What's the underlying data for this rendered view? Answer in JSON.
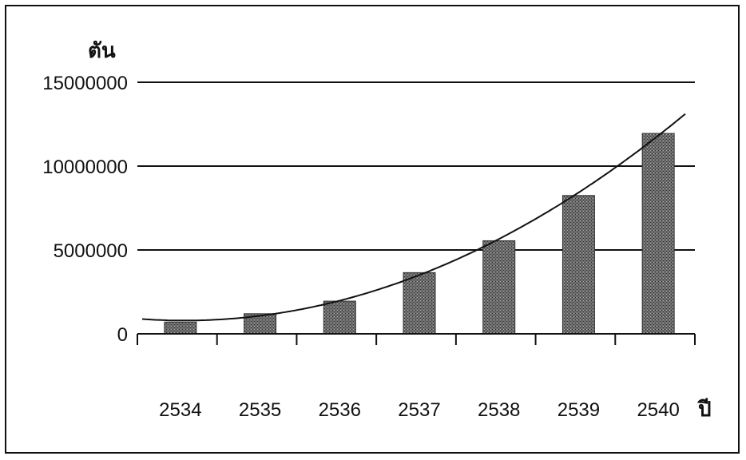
{
  "chart_data": {
    "type": "bar",
    "categories": [
      "2534",
      "2535",
      "2536",
      "2537",
      "2538",
      "2539",
      "2540"
    ],
    "values": [
      700000,
      1200000,
      1950000,
      3650000,
      5550000,
      8250000,
      11950000
    ],
    "title": "",
    "xlabel": "ปี",
    "ylabel": "ตัน",
    "ylim": [
      0,
      15000000
    ],
    "yticks": [
      "0",
      "5000000",
      "10000000",
      "15000000"
    ],
    "trendline": {
      "type": "curve",
      "color": "#111111"
    },
    "grid": "horizontal",
    "bar_color": "#6e6e6e"
  }
}
